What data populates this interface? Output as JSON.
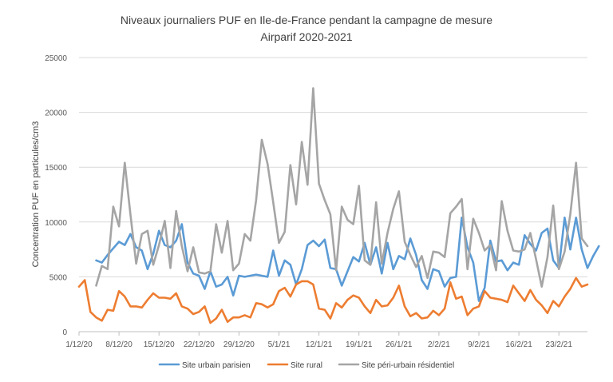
{
  "chart_data": {
    "type": "line",
    "title": "Niveaux journaliers PUF en Ile-de-France pendant la campagne de mesure",
    "subtitle": "Airparif 2020-2021",
    "xlabel": "",
    "ylabel": "Concentration PUF en particules/cm3",
    "ylim": [
      0,
      25000
    ],
    "yticks": [
      0,
      5000,
      10000,
      15000,
      20000,
      25000
    ],
    "ytick_labels": [
      "0",
      "5000",
      "10000",
      "15000",
      "20000",
      "25000"
    ],
    "grid": true,
    "legend_position": "bottom",
    "x_ticks": [
      {
        "label": "1/12/20",
        "day": 0
      },
      {
        "label": "8/12/20",
        "day": 7
      },
      {
        "label": "15/12/20",
        "day": 14
      },
      {
        "label": "22/12/20",
        "day": 21
      },
      {
        "label": "29/12/20",
        "day": 28
      },
      {
        "label": "5/1/21",
        "day": 35
      },
      {
        "label": "12/1/21",
        "day": 42
      },
      {
        "label": "19/1/21",
        "day": 49
      },
      {
        "label": "26/1/21",
        "day": 56
      },
      {
        "label": "2/2/21",
        "day": 63
      },
      {
        "label": "9/2/21",
        "day": 70
      },
      {
        "label": "16/2/21",
        "day": 77
      },
      {
        "label": "23/2/21",
        "day": 84
      }
    ],
    "x_start_label": "1/12/20",
    "series": [
      {
        "name": "Site urbain parisien",
        "color": "#5B9BD5",
        "start_day": 3,
        "values": [
          6500,
          6300,
          7000,
          7600,
          8200,
          7900,
          8900,
          7700,
          7400,
          5700,
          7100,
          9200,
          7900,
          7700,
          8300,
          9800,
          6300,
          5300,
          5100,
          3900,
          5500,
          4100,
          4300,
          5000,
          3300,
          5100,
          5000,
          5100,
          5200,
          5100,
          5000,
          7400,
          5100,
          6500,
          6100,
          4300,
          5700,
          7900,
          8300,
          7800,
          8400,
          5800,
          5700,
          4200,
          5500,
          6800,
          6400,
          8100,
          6100,
          7700,
          5300,
          8100,
          5700,
          6900,
          6600,
          8500,
          7000,
          4700,
          3900,
          5700,
          5500,
          4100,
          4900,
          5000,
          10400,
          7700,
          6300,
          2800,
          4000,
          8300,
          6400,
          6500,
          5600,
          6300,
          6100,
          8800,
          8000,
          7400,
          9000,
          9400,
          6500,
          5800,
          10400,
          7500,
          10400,
          7500,
          5800,
          6900,
          7800
        ]
      },
      {
        "name": "Site rural",
        "color": "#ED7D31",
        "start_day": 0,
        "values": [
          4100,
          4700,
          1800,
          1300,
          1000,
          2000,
          1900,
          3700,
          3200,
          2300,
          2300,
          2200,
          2900,
          3500,
          3100,
          3100,
          3000,
          3500,
          2300,
          2100,
          1600,
          1800,
          2300,
          800,
          1200,
          2000,
          900,
          1300,
          1300,
          1500,
          1300,
          2600,
          2500,
          2200,
          2500,
          3700,
          4000,
          3200,
          4300,
          4600,
          4600,
          4300,
          2100,
          2000,
          1200,
          2600,
          2200,
          2900,
          3300,
          3100,
          2300,
          1700,
          2900,
          2300,
          2400,
          3100,
          4200,
          2300,
          1400,
          1700,
          1200,
          1300,
          1900,
          1500,
          2100,
          4500,
          3000,
          3200,
          1500,
          2100,
          2300,
          3700,
          3100,
          3000,
          2900,
          2700,
          4200,
          3500,
          2800,
          3800,
          2900,
          2400,
          1700,
          2800,
          2300,
          3200,
          3900,
          4900,
          4100,
          4300
        ]
      },
      {
        "name": "Site péri-urbain résidentiel",
        "color": "#A5A5A5",
        "start_day": 3,
        "values": [
          4200,
          6000,
          5700,
          11400,
          9600,
          15400,
          10700,
          6200,
          8900,
          9200,
          6100,
          7900,
          10100,
          5800,
          11000,
          7800,
          5500,
          7700,
          5400,
          5300,
          5500,
          9800,
          7200,
          10100,
          5600,
          6200,
          8900,
          8300,
          12000,
          17500,
          15300,
          11800,
          8100,
          9100,
          15200,
          11600,
          17300,
          13400,
          22200,
          13500,
          12000,
          10700,
          5600,
          11400,
          10200,
          9800,
          13300,
          6500,
          6100,
          11800,
          6200,
          9000,
          11200,
          12800,
          8200,
          7000,
          5900,
          6900,
          4900,
          7300,
          7200,
          6800,
          10800,
          11400,
          12100,
          5700,
          10300,
          9000,
          7400,
          7900,
          5600,
          11900,
          9200,
          7400,
          7300,
          7500,
          9000,
          6600,
          4100,
          6800,
          11500,
          5700,
          7300,
          10700,
          15400,
          8500,
          7800
        ]
      }
    ]
  }
}
